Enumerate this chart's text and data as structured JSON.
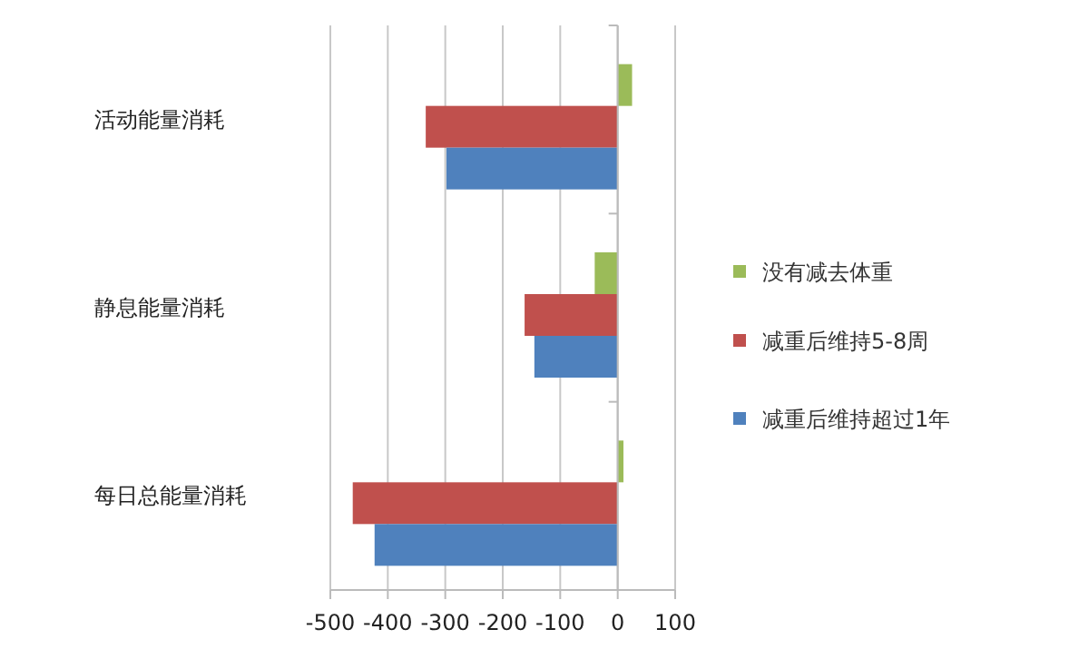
{
  "chart_data": {
    "type": "bar",
    "orientation": "horizontal",
    "categories": [
      "活动能量消耗",
      "静息能量消耗",
      "每日总能量消耗"
    ],
    "series": [
      {
        "name": "没有减去体重",
        "color": "#9bbb59",
        "values": [
          25,
          -40,
          10
        ]
      },
      {
        "name": "减重后维持5-8周",
        "color": "#c0504d",
        "values": [
          -334,
          -162,
          -461
        ]
      },
      {
        "name": "减重后维持超过1年",
        "color": "#4f81bd",
        "values": [
          -298,
          -145,
          -423
        ]
      }
    ],
    "xlim": [
      -500,
      100
    ],
    "xticks": [
      -500,
      -400,
      -300,
      -200,
      -100,
      0,
      100
    ],
    "grid": "x",
    "legend": "right"
  }
}
